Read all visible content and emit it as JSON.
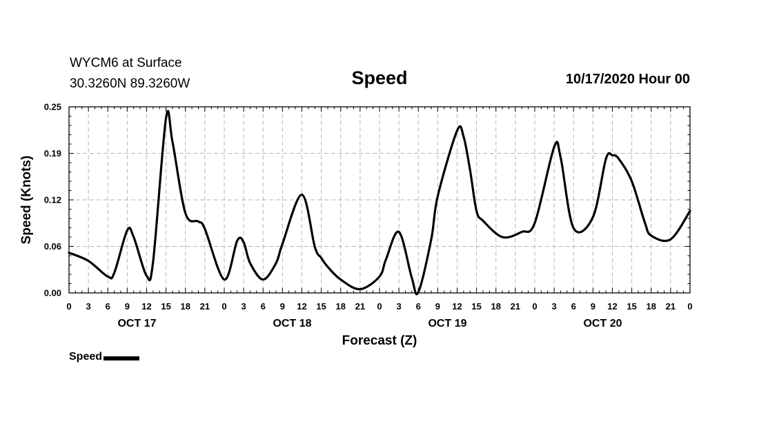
{
  "header": {
    "station": "WYCM6 at Surface",
    "coords": "30.3260N 89.3260W",
    "title": "Speed",
    "datetime": "10/17/2020 Hour 00"
  },
  "chart_data": {
    "type": "line",
    "title": "Speed",
    "xlabel": "Forecast (Z)",
    "ylabel": "Speed (Knots)",
    "ylim": [
      0,
      0.25
    ],
    "yticks": [
      "0.00",
      "0.06",
      "0.12",
      "0.19",
      "0.25"
    ],
    "xlim": [
      0,
      96
    ],
    "x_tick_labels": [
      "0",
      "3",
      "6",
      "9",
      "12",
      "15",
      "18",
      "21",
      "0",
      "3",
      "6",
      "9",
      "12",
      "15",
      "18",
      "21",
      "0",
      "3",
      "6",
      "9",
      "12",
      "15",
      "18",
      "21",
      "0",
      "3",
      "6",
      "9",
      "12",
      "15",
      "18",
      "21",
      "0"
    ],
    "day_labels": [
      "OCT 17",
      "OCT 18",
      "OCT 19",
      "OCT 20"
    ],
    "grid": true,
    "legend": "bottom-left",
    "series": [
      {
        "name": "Speed",
        "color": "#000000",
        "x": [
          0,
          3,
          6,
          7,
          9,
          10,
          12,
          13,
          15,
          16,
          18,
          20,
          21,
          24,
          26,
          27,
          28,
          30,
          32,
          33,
          36,
          38,
          39,
          40,
          42,
          45,
          48,
          49,
          51,
          53,
          54,
          56,
          57,
          60,
          61,
          62,
          63,
          64,
          67,
          70,
          72,
          75,
          76,
          78,
          81,
          83,
          84,
          85,
          87,
          89,
          90,
          93,
          96
        ],
        "y": [
          0.054,
          0.043,
          0.022,
          0.027,
          0.084,
          0.075,
          0.023,
          0.042,
          0.235,
          0.203,
          0.107,
          0.096,
          0.086,
          0.018,
          0.07,
          0.068,
          0.04,
          0.018,
          0.04,
          0.066,
          0.132,
          0.062,
          0.047,
          0.035,
          0.018,
          0.005,
          0.022,
          0.045,
          0.082,
          0.02,
          0.001,
          0.072,
          0.13,
          0.218,
          0.21,
          0.165,
          0.11,
          0.097,
          0.075,
          0.082,
          0.094,
          0.196,
          0.182,
          0.087,
          0.102,
          0.18,
          0.185,
          0.18,
          0.15,
          0.095,
          0.077,
          0.072,
          0.11
        ]
      }
    ]
  },
  "legend_items": [
    {
      "label": "Speed",
      "color": "#000000"
    }
  ]
}
